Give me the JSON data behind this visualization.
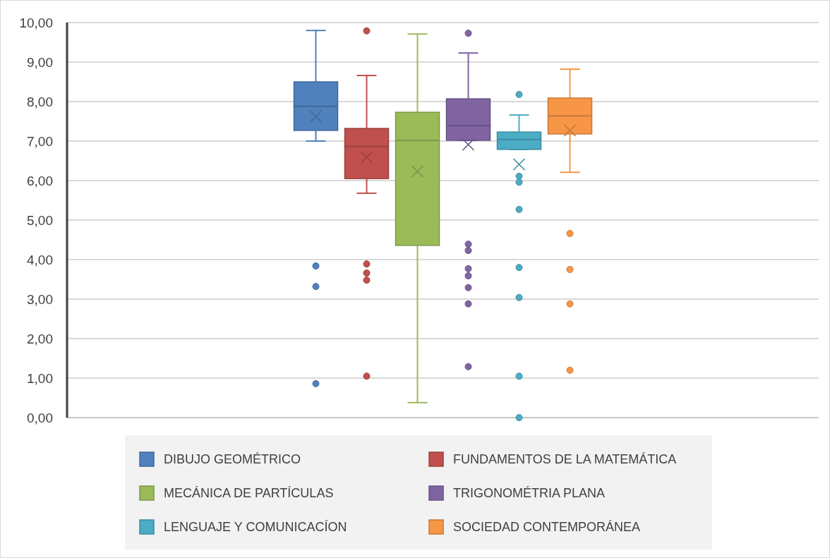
{
  "chart_data": {
    "type": "box",
    "categories": [
      null
    ],
    "ylim": [
      0,
      10
    ],
    "yticks": [
      {
        "value": 0,
        "label": "0,00"
      },
      {
        "value": 1,
        "label": "1,00"
      },
      {
        "value": 2,
        "label": "2,00"
      },
      {
        "value": 3,
        "label": "3,00"
      },
      {
        "value": 4,
        "label": "4,00"
      },
      {
        "value": 5,
        "label": "5,00"
      },
      {
        "value": 6,
        "label": "6,00"
      },
      {
        "value": 7,
        "label": "7,00"
      },
      {
        "value": 8,
        "label": "8,00"
      },
      {
        "value": 9,
        "label": "9,00"
      },
      {
        "value": 10,
        "label": "10,00"
      }
    ],
    "grid": "y",
    "legend": "bottom",
    "series": [
      {
        "name": "DIBUJO GEOMÉTRICO",
        "color": "#4f81bd",
        "boxes": [
          {
            "low": 7.0,
            "q1": 7.27,
            "median": 7.88,
            "q3": 8.5,
            "high": 9.8,
            "mean": 7.62,
            "outliers": [
              3.84,
              3.32,
              0.86
            ]
          }
        ]
      },
      {
        "name": "FUNDAMENTOS DE LA MATEMÁTICA",
        "color": "#c0504d",
        "boxes": [
          {
            "low": 5.68,
            "q1": 6.05,
            "median": 6.86,
            "q3": 7.32,
            "high": 8.66,
            "mean": 6.59,
            "outliers": [
              9.79,
              3.89,
              3.66,
              3.48,
              1.05
            ]
          }
        ]
      },
      {
        "name": "MECÁNICA DE PARTÍCULAS",
        "color": "#9bbb59",
        "boxes": [
          {
            "low": 0.38,
            "q1": 4.36,
            "median": 7.02,
            "q3": 7.73,
            "high": 9.71,
            "mean": 6.23
          }
        ]
      },
      {
        "name": "TRIGONOMÉTRIA PLANA",
        "color": "#8064a2",
        "boxes": [
          {
            "low": 7.02,
            "q1": 7.02,
            "median": 7.39,
            "q3": 8.07,
            "high": 9.23,
            "mean": 6.91,
            "outliers": [
              9.73,
              4.39,
              4.23,
              3.77,
              3.59,
              3.29,
              2.88,
              1.29
            ]
          }
        ]
      },
      {
        "name": "LENGUAJE Y COMUNICACÍON",
        "color": "#4bacc6",
        "boxes": [
          {
            "low": 6.79,
            "q1": 6.79,
            "median": 7.04,
            "q3": 7.23,
            "high": 7.66,
            "mean": 6.41,
            "outliers": [
              8.18,
              6.11,
              5.96,
              5.27,
              3.8,
              3.04,
              1.05,
              0
            ]
          }
        ]
      },
      {
        "name": "SOCIEDAD CONTEMPORÁNEA",
        "color": "#f79646",
        "boxes": [
          {
            "low": 6.21,
            "q1": 7.18,
            "median": 7.64,
            "q3": 8.09,
            "high": 8.82,
            "mean": 7.27,
            "outliers": [
              4.66,
              3.75,
              2.88,
              1.2
            ]
          }
        ]
      }
    ]
  }
}
